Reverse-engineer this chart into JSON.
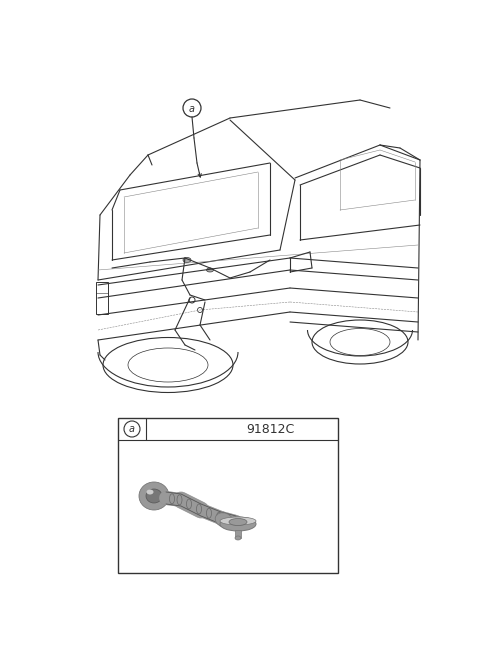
{
  "background_color": "#ffffff",
  "part_label": "a",
  "part_code": "91812C",
  "fig_width": 4.8,
  "fig_height": 6.57,
  "dpi": 100,
  "line_color": "#333333",
  "light_line": "#888888",
  "gray1": "#aaaaaa",
  "gray2": "#bbbbbb",
  "gray3": "#cccccc"
}
